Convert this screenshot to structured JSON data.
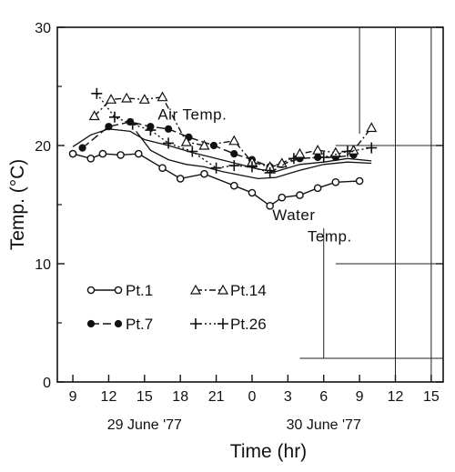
{
  "chart_data": {
    "type": "line",
    "ylabel": "Temp. (°C)",
    "xlabel": "Time (hr)",
    "ylim": [
      0,
      30
    ],
    "yticks": [
      0,
      10,
      20,
      30
    ],
    "xticks": [
      {
        "label": "9",
        "t": 9
      },
      {
        "label": "12",
        "t": 12
      },
      {
        "label": "15",
        "t": 15
      },
      {
        "label": "18",
        "t": 18
      },
      {
        "label": "21",
        "t": 21
      },
      {
        "label": "0",
        "t": 24
      },
      {
        "label": "3",
        "t": 27
      },
      {
        "label": "6",
        "t": 30
      },
      {
        "label": "9",
        "t": 33
      },
      {
        "label": "12",
        "t": 36
      },
      {
        "label": "15",
        "t": 39
      }
    ],
    "xlim": [
      7.7,
      40
    ],
    "date_labels": [
      {
        "text": "29 June '77",
        "t": 15
      },
      {
        "text": "30 June '77",
        "t": 30
      }
    ],
    "annotations": [
      {
        "text": "Air  Temp.",
        "t": 19,
        "y": 22.2
      },
      {
        "text": "Water",
        "t": 27.5,
        "y": 13.7
      },
      {
        "text": "Temp.",
        "t": 30.5,
        "y": 11.9
      }
    ],
    "grid": "sparse",
    "series": [
      {
        "name": "Pt.1",
        "marker": "open-circle",
        "line": "solid",
        "x": [
          9,
          10.5,
          11.5,
          13,
          14.5,
          16.5,
          18,
          20,
          22.5,
          24,
          25.5,
          26.5,
          28,
          29.5,
          31,
          33
        ],
        "y": [
          19.3,
          18.9,
          19.3,
          19.2,
          19.3,
          18.1,
          17.2,
          17.6,
          16.6,
          16.0,
          14.9,
          15.6,
          15.8,
          16.4,
          16.9,
          17.0
        ]
      },
      {
        "name": "Pt.7",
        "marker": "filled-circle",
        "line": "dashed",
        "x": [
          9.8,
          12,
          13.8,
          15.5,
          17,
          18.7,
          20.8,
          22.5,
          24,
          25.5,
          26.5,
          28,
          29.5,
          31,
          32.5
        ],
        "y": [
          19.8,
          21.6,
          22.0,
          21.6,
          21.4,
          20.7,
          20.0,
          19.3,
          18.8,
          18.2,
          18.4,
          18.9,
          19.0,
          19.0,
          19.2
        ]
      },
      {
        "name": "Pt.14",
        "marker": "open-triangle",
        "line": "dash-dot",
        "x": [
          10.8,
          12.2,
          13.5,
          15,
          16.5,
          18.5,
          20,
          22.5,
          24,
          25.5,
          26.5,
          28,
          29.5,
          31,
          32.5,
          34
        ],
        "y": [
          22.5,
          23.9,
          24.0,
          23.9,
          24.1,
          20.3,
          20.0,
          20.4,
          18.6,
          18.2,
          18.5,
          19.3,
          19.6,
          19.4,
          19.6,
          21.5
        ]
      },
      {
        "name": "Pt.26",
        "marker": "plus",
        "line": "dotted",
        "x": [
          11,
          12.5,
          14,
          15.5,
          17,
          19,
          21,
          22.5,
          24,
          25.5,
          27.5,
          30,
          32,
          34
        ],
        "y": [
          24.4,
          22.4,
          21.8,
          21.3,
          20.2,
          19.5,
          18.1,
          18.3,
          18.2,
          17.7,
          18.9,
          19.0,
          19.5,
          19.8
        ]
      },
      {
        "name": "",
        "marker": "none",
        "line": "solid",
        "x": [
          9,
          10.5,
          12,
          13.8,
          15,
          17,
          19,
          21,
          23,
          24.5,
          26,
          28,
          30,
          32,
          34
        ],
        "y": [
          19.9,
          20.9,
          21.4,
          21.2,
          20.5,
          20.0,
          19.4,
          18.9,
          18.4,
          18.0,
          17.8,
          18.4,
          18.6,
          18.9,
          18.7
        ]
      },
      {
        "name": "",
        "marker": "none",
        "line": "solid",
        "x": [
          14.3,
          15.5,
          17,
          18.5,
          20,
          21.5,
          23,
          24.5,
          26,
          28,
          30,
          32,
          34
        ],
        "y": [
          21.2,
          19.6,
          18.8,
          18.4,
          18.2,
          17.8,
          17.5,
          17.2,
          17.3,
          17.9,
          18.4,
          18.6,
          18.5
        ]
      }
    ],
    "legend": [
      {
        "label": "Pt.1",
        "series": "Pt.1"
      },
      {
        "label": "Pt.14",
        "series": "Pt.14"
      },
      {
        "label": "Pt.7",
        "series": "Pt.7"
      },
      {
        "label": "Pt.26",
        "series": "Pt.26"
      }
    ]
  }
}
